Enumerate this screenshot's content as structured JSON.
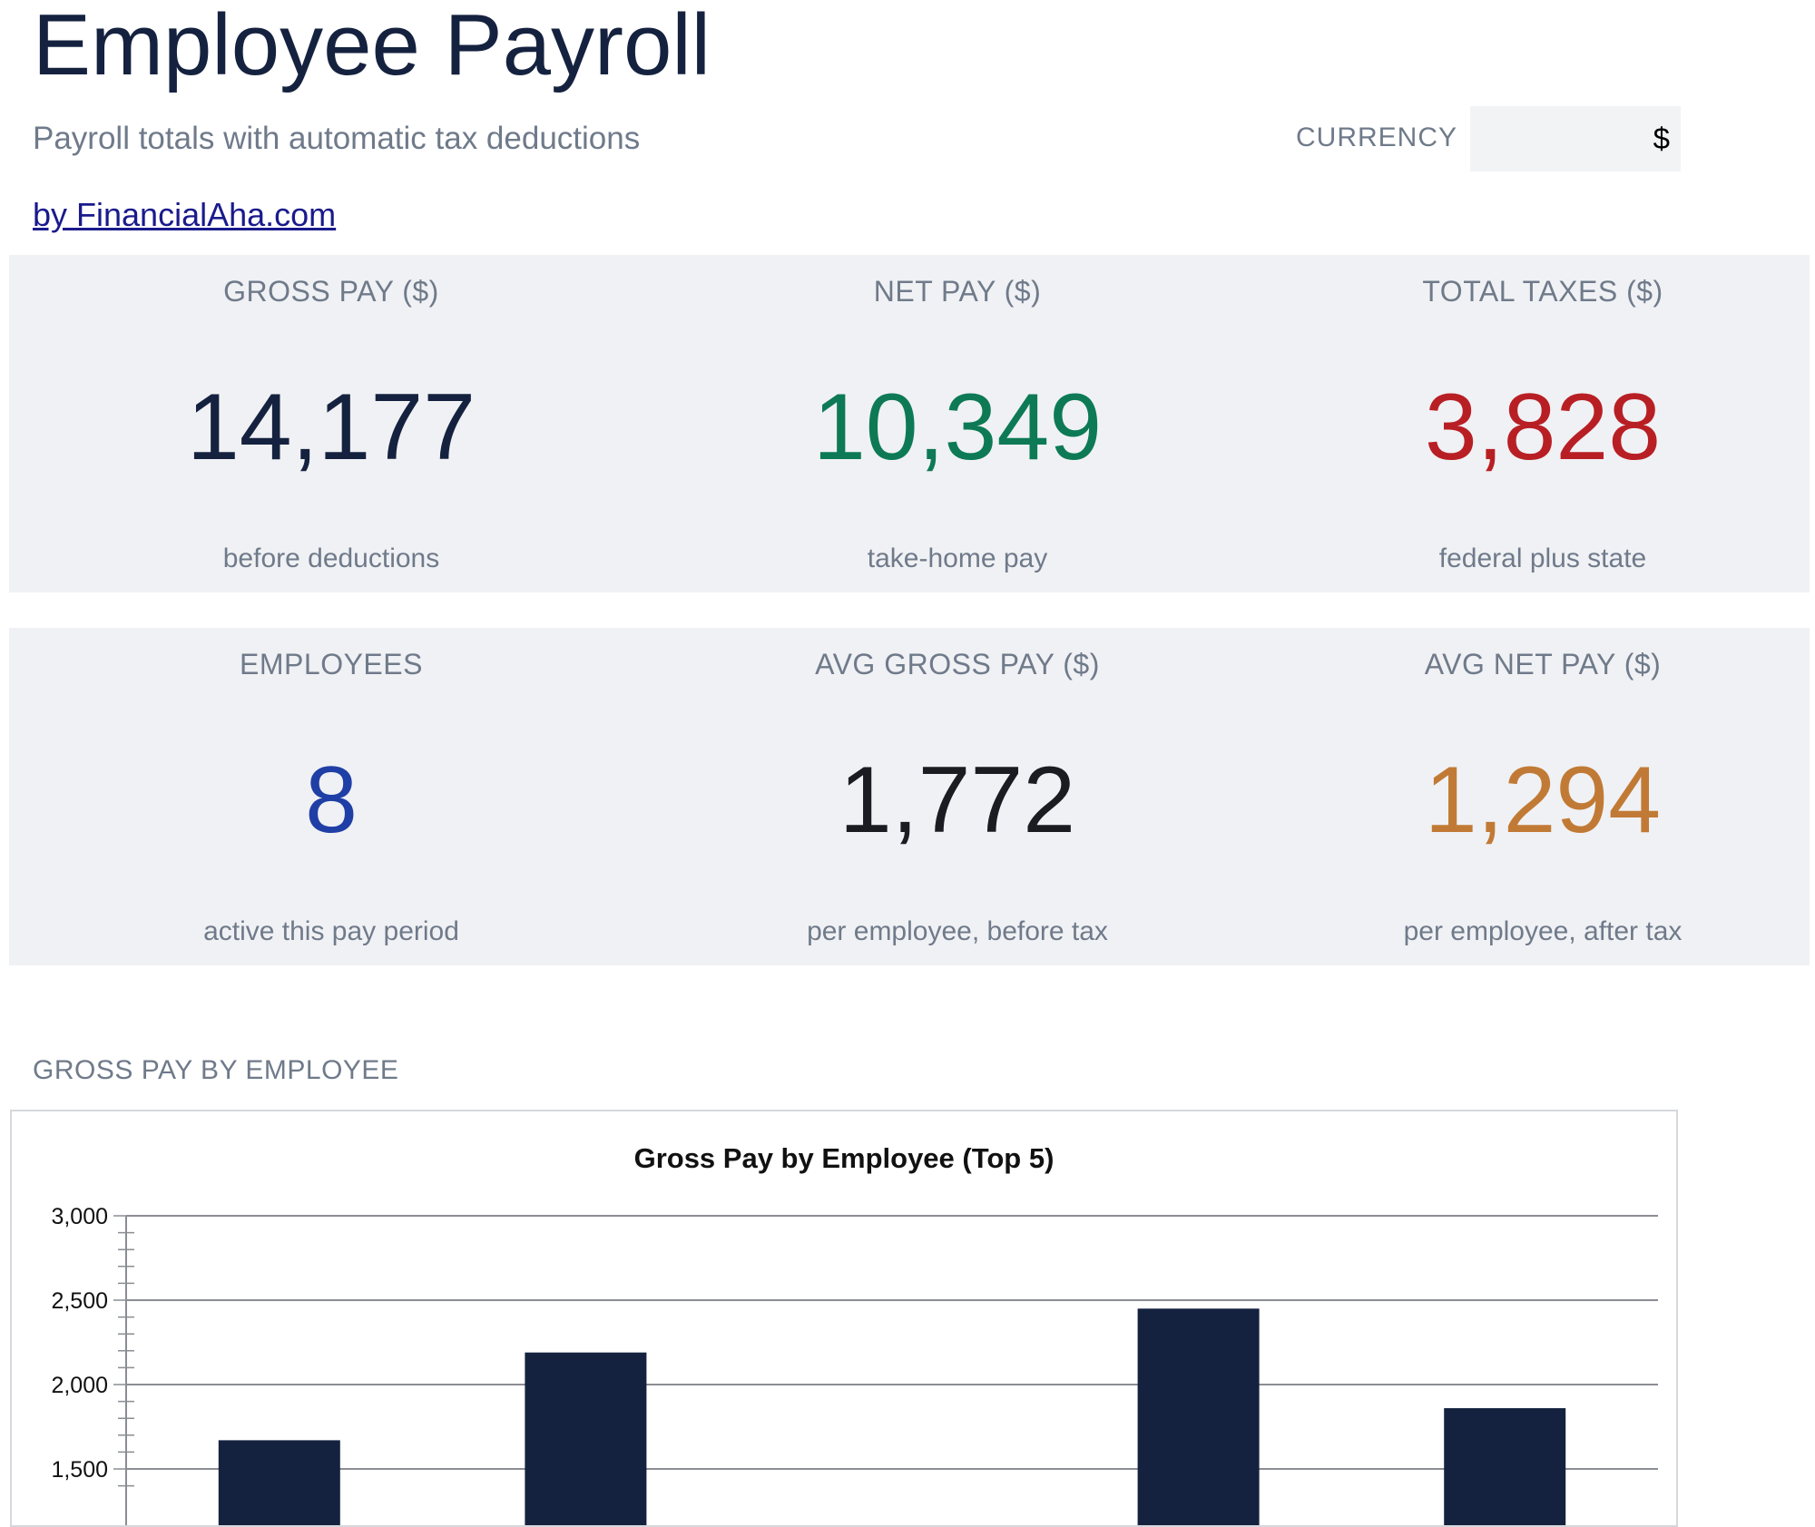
{
  "header": {
    "title": "Employee Payroll",
    "subtitle": "Payroll totals with automatic tax deductions",
    "link_text": "by FinancialAha.com",
    "currency_label": "CURRENCY",
    "currency_value": "$"
  },
  "kpis": [
    {
      "label": "GROSS PAY ($)",
      "value": "14,177",
      "sub": "before deductions",
      "color": "#15223f"
    },
    {
      "label": "NET PAY ($)",
      "value": "10,349",
      "sub": "take-home pay",
      "color": "#0d7a55"
    },
    {
      "label": "TOTAL TAXES ($)",
      "value": "3,828",
      "sub": "federal plus state",
      "color": "#b81f24"
    },
    {
      "label": "EMPLOYEES",
      "value": "8",
      "sub": "active this pay period",
      "color": "#1f3fa6"
    },
    {
      "label": "AVG GROSS PAY ($)",
      "value": "1,772",
      "sub": "per employee, before tax",
      "color": "#1a1c22"
    },
    {
      "label": "AVG NET PAY ($)",
      "value": "1,294",
      "sub": "per employee, after tax",
      "color": "#c17a35"
    }
  ],
  "section": {
    "title": "GROSS PAY BY EMPLOYEE"
  },
  "chart_data": {
    "type": "bar",
    "title": "Gross Pay by Employee (Top 5)",
    "values": [
      1670,
      2190,
      null,
      2450,
      1860
    ],
    "ylim": [
      1500,
      3000
    ],
    "y_ticks": [
      "1,500",
      "2,000",
      "2,500",
      "3,000"
    ],
    "grid": true,
    "bar_color": "#15223f"
  }
}
